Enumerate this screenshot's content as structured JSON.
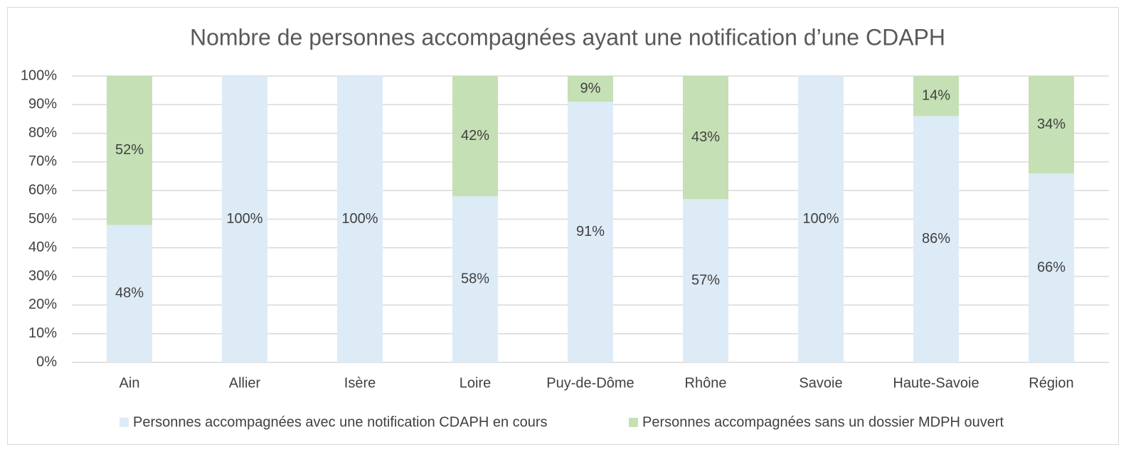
{
  "chart_data": {
    "type": "stacked_bar",
    "title": "Nombre de personnes accompagnées ayant une notification d’une CDAPH",
    "categories": [
      "Ain",
      "Allier",
      "Isère",
      "Loire",
      "Puy-de-Dôme",
      "Rhône",
      "Savoie",
      "Haute-Savoie",
      "Région"
    ],
    "series": [
      {
        "name": "Personnes accompagnées avec une notification CDAPH en cours",
        "color": "#ddebf7",
        "values": [
          48,
          100,
          100,
          58,
          91,
          57,
          100,
          86,
          66
        ],
        "value_labels": [
          "48%",
          "100%",
          "100%",
          "58%",
          "91%",
          "57%",
          "100%",
          "86%",
          "66%"
        ]
      },
      {
        "name": "Personnes accompagnées sans un dossier MDPH ouvert",
        "color": "#c5e0b4",
        "values": [
          52,
          0,
          0,
          42,
          9,
          43,
          0,
          14,
          34
        ],
        "value_labels": [
          "52%",
          null,
          null,
          "42%",
          "9%",
          "43%",
          null,
          "14%",
          "34%"
        ]
      }
    ],
    "ylim": [
      0,
      100
    ],
    "yticks": [
      {
        "value": 0,
        "label": "0%"
      },
      {
        "value": 10,
        "label": "10%"
      },
      {
        "value": 20,
        "label": "20%"
      },
      {
        "value": 30,
        "label": "30%"
      },
      {
        "value": 40,
        "label": "40%"
      },
      {
        "value": 50,
        "label": "50%"
      },
      {
        "value": 60,
        "label": "60%"
      },
      {
        "value": 70,
        "label": "70%"
      },
      {
        "value": 80,
        "label": "80%"
      },
      {
        "value": 90,
        "label": "90%"
      },
      {
        "value": 100,
        "label": "100%"
      }
    ],
    "grid": true,
    "legend": "bottom"
  }
}
